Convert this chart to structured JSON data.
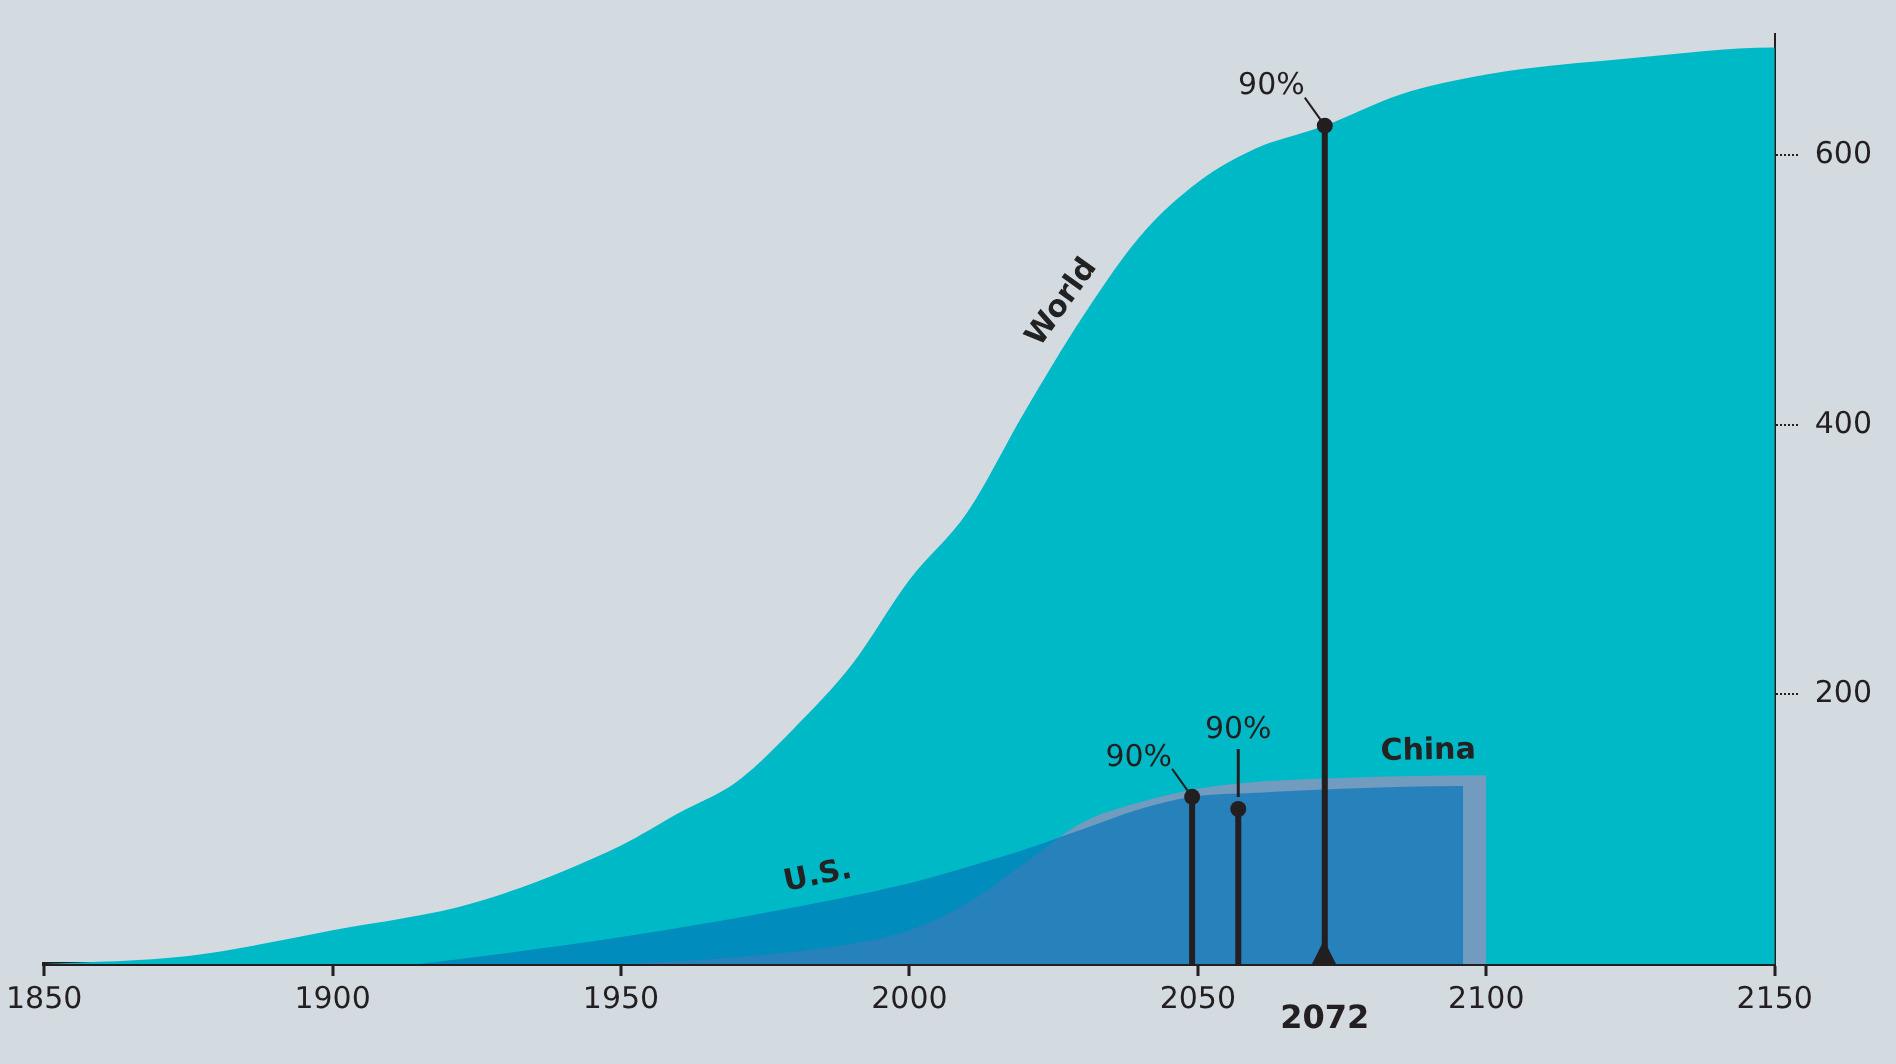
{
  "chart_data": {
    "type": "area",
    "xlim": [
      1850,
      2150
    ],
    "xticks": [
      1850,
      1900,
      1950,
      2000,
      2050,
      2100,
      2150
    ],
    "ylim": [
      0,
      690
    ],
    "yticks": [
      200,
      400,
      600
    ],
    "series": [
      {
        "name": "World",
        "color": "#00b9c7",
        "x": [
          1850,
          1875,
          1900,
          1925,
          1950,
          1960,
          1970,
          1980,
          1990,
          2000,
          2010,
          2020,
          2030,
          2040,
          2050,
          2060,
          2072,
          2085,
          2100,
          2125,
          2150,
          2150
        ],
        "values": [
          0,
          6,
          25,
          46,
          88,
          112,
          135,
          175,
          222,
          285,
          335,
          410,
          480,
          540,
          580,
          605,
          622,
          645,
          660,
          672,
          680,
          0
        ]
      },
      {
        "name": "U.S.",
        "color": "#0073b9",
        "x": [
          1915,
          1930,
          1950,
          1975,
          2000,
          2010,
          2020,
          2030,
          2040,
          2049,
          2060,
          2075,
          2096,
          2096
        ],
        "values": [
          0,
          8,
          20,
          38,
          60,
          72,
          85,
          100,
          115,
          124,
          127,
          130,
          132,
          0
        ]
      },
      {
        "name": "China",
        "color": "#ad8cbb",
        "x": [
          1950,
          1970,
          1990,
          2000,
          2010,
          2020,
          2030,
          2040,
          2050,
          2060,
          2075,
          2100,
          2100
        ],
        "values": [
          0,
          5,
          15,
          25,
          45,
          75,
          105,
          120,
          130,
          135,
          138,
          140,
          0
        ]
      }
    ],
    "annotations": [
      {
        "text": "90%",
        "x": 2049,
        "y": 124
      },
      {
        "text": "90%",
        "x": 2057,
        "y": 115
      },
      {
        "text": "90%",
        "x": 2072,
        "y": 622
      }
    ],
    "ref_lines": [
      {
        "axis": "x",
        "value": 2049
      },
      {
        "axis": "x",
        "value": 2057
      },
      {
        "axis": "x",
        "value": 2072,
        "label": "2072"
      }
    ],
    "grid": false,
    "legend": false
  }
}
